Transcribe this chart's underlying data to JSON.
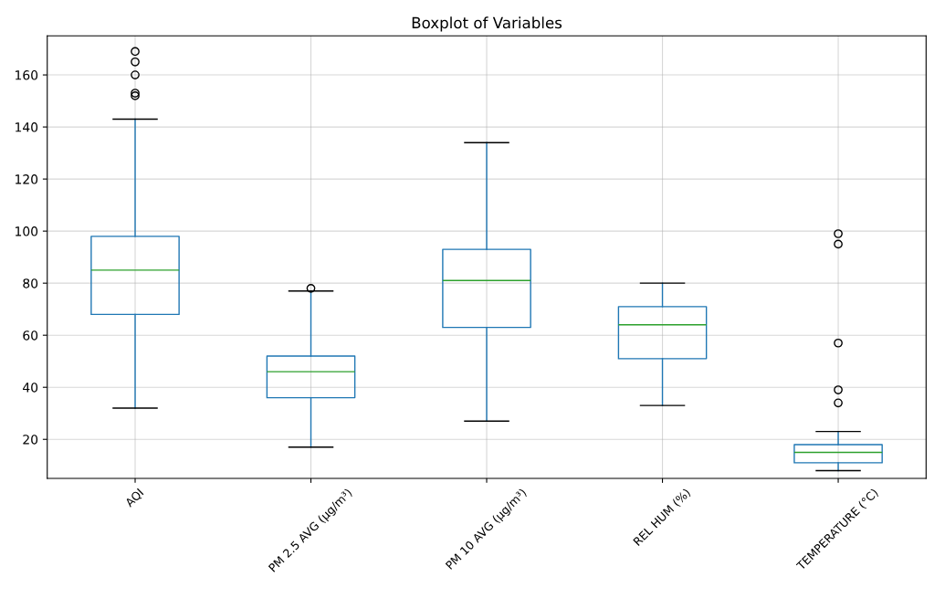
{
  "chart_data": {
    "type": "box",
    "title": "Boxplot of Variables",
    "categories": [
      "AQI",
      "PM 2.5 AVG (µg/m³)",
      "PM 10 AVG (µg/m³)",
      "REL HUM (%)",
      "TEMPERATURE (°C)"
    ],
    "boxes": [
      {
        "low": 32,
        "q1": 68,
        "median": 85,
        "q3": 98,
        "high": 143,
        "outliers": [
          152,
          153,
          160,
          165,
          169
        ]
      },
      {
        "low": 17,
        "q1": 36,
        "median": 46,
        "q3": 52,
        "high": 77,
        "outliers": [
          78
        ]
      },
      {
        "low": 27,
        "q1": 63,
        "median": 81,
        "q3": 93,
        "high": 134
      },
      {
        "low": 33,
        "q1": 51,
        "median": 64,
        "q3": 71,
        "high": 80
      },
      {
        "low": 8,
        "q1": 11,
        "median": 15,
        "q3": 18,
        "high": 23,
        "outliers": [
          34,
          39,
          57,
          95,
          99
        ]
      }
    ],
    "color": "#1f77b4",
    "ylim": [
      5,
      175
    ],
    "yticks": [
      20,
      40,
      60,
      80,
      100,
      120,
      140,
      160
    ],
    "grid": true
  }
}
